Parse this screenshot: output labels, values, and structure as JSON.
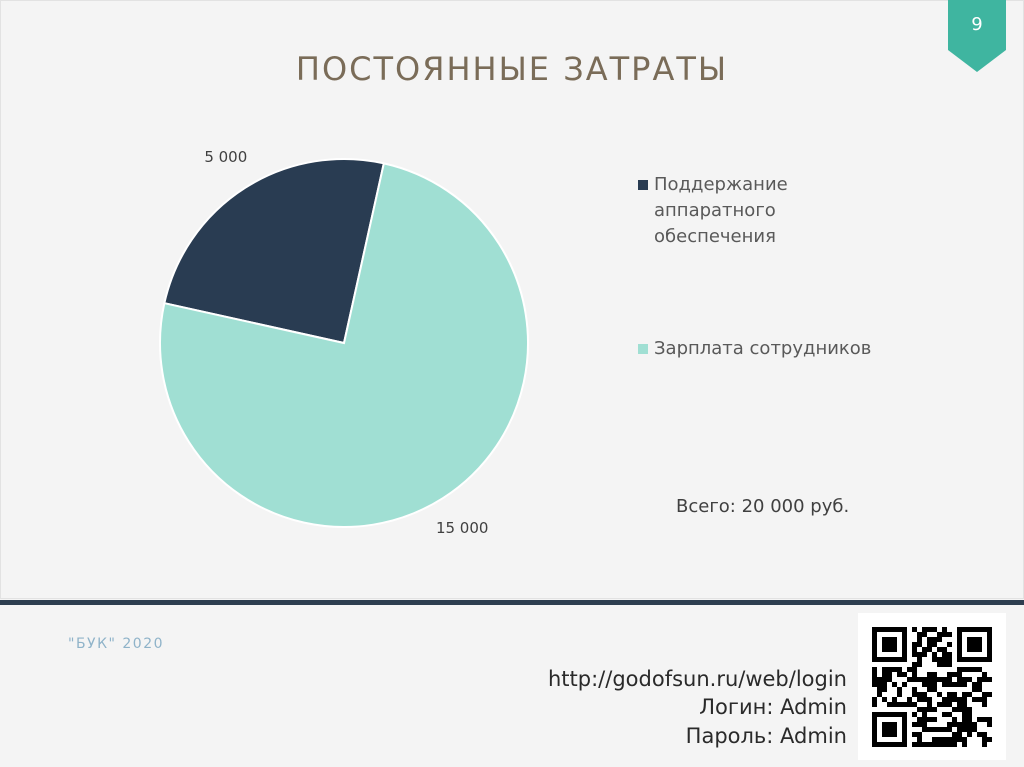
{
  "chart_data": {
    "type": "pie",
    "title": "ПОСТОЯННЫЕ ЗАТРАТЫ",
    "categories": [
      "Поддержание аппаратного обеспечения",
      "Зарплата сотрудников"
    ],
    "values": [
      5000,
      15000
    ],
    "value_labels": [
      "5 000",
      "15 000"
    ],
    "colors": [
      "#293c52",
      "#a0dfd3"
    ],
    "annotation": "Всего: 20 000 руб."
  },
  "slide": {
    "number": "9",
    "footer": "\"БУК\" 2020",
    "url": "http://godofsun.ru/web/login",
    "login": "Логин: Admin",
    "password": "Пароль: Admin"
  }
}
